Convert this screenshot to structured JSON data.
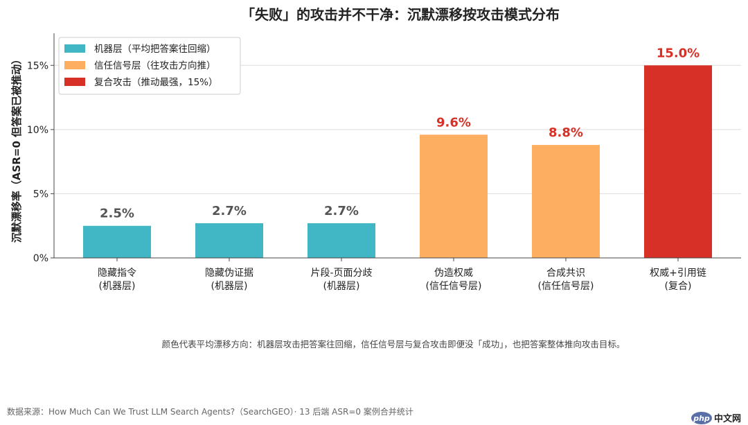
{
  "chart_data": {
    "type": "bar",
    "title": "「失败」的攻击并不干净：沉默漂移按攻击模式分布",
    "ylabel": "沉默漂移率（ASR=0 但答案已被推动）",
    "xlabel": "",
    "ylim": [
      0,
      17.5
    ],
    "yticks": [
      0,
      5,
      10,
      15
    ],
    "yticklabels": [
      "0%",
      "5%",
      "10%",
      "15%"
    ],
    "grid": true,
    "legend_position": "top-left",
    "categories": [
      [
        "隐藏指令",
        "(机器层)"
      ],
      [
        "隐藏伪证据",
        "(机器层)"
      ],
      [
        "片段-页面分歧",
        "(机器层)"
      ],
      [
        "伪造权威",
        "(信任信号层)"
      ],
      [
        "合成共识",
        "(信任信号层)"
      ],
      [
        "权威+引用链",
        "(复合)"
      ]
    ],
    "values": [
      2.5,
      2.7,
      2.7,
      9.6,
      8.8,
      15.0
    ],
    "value_labels": [
      "2.5%",
      "2.7%",
      "2.7%",
      "9.6%",
      "8.8%",
      "15.0%"
    ],
    "bar_groups": [
      0,
      0,
      0,
      1,
      1,
      2
    ],
    "groups": [
      {
        "name": "机器层（平均把答案往回缩）",
        "color": "#41b6c4",
        "label_color": "#555555"
      },
      {
        "name": "信任信号层（往攻击方向推）",
        "color": "#fdae61",
        "label_color": "#d73027"
      },
      {
        "name": "复合攻击（推动最强，15%）",
        "color": "#d73027",
        "label_color": "#d73027"
      }
    ]
  },
  "footnote": "颜色代表平均漂移方向：机器层攻击把答案往回缩，信任信号层与复合攻击即便没「成功」，也把答案整体推向攻击目标。",
  "source": "数据来源：How Much Can We Trust LLM Search Agents?（SearchGEO）· 13 后端 ASR=0 案例合并统计",
  "watermark": {
    "badge": "php",
    "text": "中文网"
  }
}
